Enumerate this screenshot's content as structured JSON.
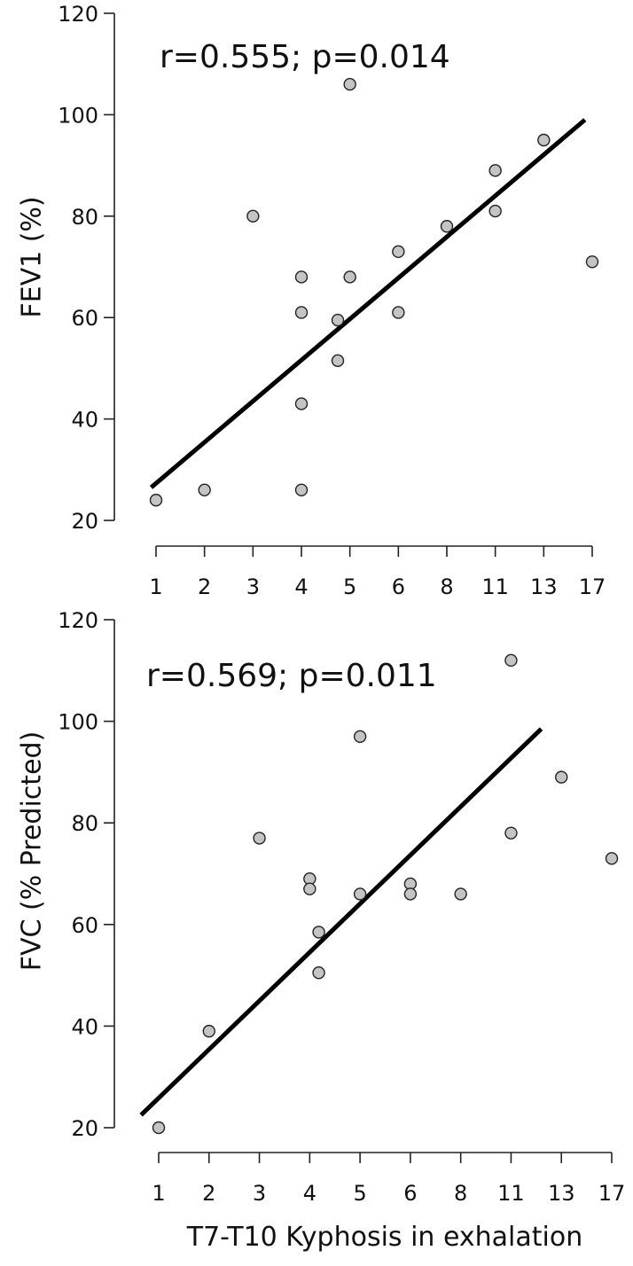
{
  "chart_data": [
    {
      "type": "scatter",
      "title": "",
      "annotation": "r=0.555; p=0.014",
      "ylabel": "FEV1 (%)",
      "xlabel": "",
      "ylim": [
        20,
        120
      ],
      "yticks": [
        20,
        40,
        60,
        80,
        100,
        120
      ],
      "xtick_labels": [
        "1",
        "2",
        "3",
        "4",
        "5",
        "6",
        "8",
        "11",
        "13",
        "17"
      ],
      "x_ordinal_range": [
        1,
        10
      ],
      "grid": false,
      "points": [
        {
          "x": 1,
          "y": 24
        },
        {
          "x": 2,
          "y": 26
        },
        {
          "x": 3,
          "y": 80
        },
        {
          "x": 4,
          "y": 68
        },
        {
          "x": 4,
          "y": 61
        },
        {
          "x": 4,
          "y": 43
        },
        {
          "x": 4,
          "y": 26
        },
        {
          "x": 4.75,
          "y": 59.5
        },
        {
          "x": 4.75,
          "y": 51.5
        },
        {
          "x": 5,
          "y": 68
        },
        {
          "x": 5,
          "y": 106
        },
        {
          "x": 6,
          "y": 73
        },
        {
          "x": 6,
          "y": 61
        },
        {
          "x": 7,
          "y": 78
        },
        {
          "x": 8,
          "y": 89
        },
        {
          "x": 8,
          "y": 81
        },
        {
          "x": 9,
          "y": 95
        },
        {
          "x": 10,
          "y": 71
        }
      ],
      "fit_line": {
        "x": [
          0.9,
          9.85
        ],
        "y": [
          26.5,
          99
        ]
      }
    },
    {
      "type": "scatter",
      "title": "",
      "annotation": "r=0.569; p=0.011",
      "ylabel": "FVC (% Predicted)",
      "xlabel": "T7-T10 Kyphosis in exhalation",
      "ylim": [
        20,
        120
      ],
      "yticks": [
        20,
        40,
        60,
        80,
        100,
        120
      ],
      "xtick_labels": [
        "1",
        "2",
        "3",
        "4",
        "5",
        "6",
        "8",
        "11",
        "13",
        "17"
      ],
      "x_ordinal_range": [
        1,
        10
      ],
      "grid": false,
      "points": [
        {
          "x": 1,
          "y": 20
        },
        {
          "x": 2,
          "y": 39
        },
        {
          "x": 3,
          "y": 77
        },
        {
          "x": 4,
          "y": 69
        },
        {
          "x": 4,
          "y": 67
        },
        {
          "x": 4.18,
          "y": 58.5
        },
        {
          "x": 4.18,
          "y": 50.5
        },
        {
          "x": 5,
          "y": 97
        },
        {
          "x": 5,
          "y": 66
        },
        {
          "x": 6,
          "y": 68
        },
        {
          "x": 6,
          "y": 66
        },
        {
          "x": 7,
          "y": 66
        },
        {
          "x": 8,
          "y": 112
        },
        {
          "x": 8,
          "y": 78
        },
        {
          "x": 9,
          "y": 89
        },
        {
          "x": 10,
          "y": 73
        }
      ],
      "fit_line": {
        "x": [
          0.65,
          8.6
        ],
        "y": [
          22.5,
          98.5
        ]
      }
    }
  ]
}
